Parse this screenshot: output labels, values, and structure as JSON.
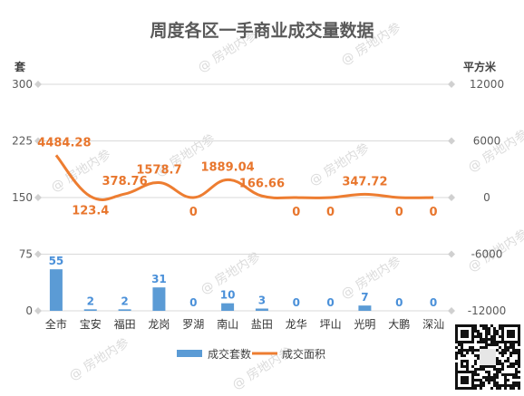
{
  "chart_data": {
    "type": "bar",
    "title": "周度各区一手商业成交量数据",
    "ylabel_left": "套",
    "ylabel_right": "平方米",
    "categories": [
      "全市",
      "宝安",
      "福田",
      "龙岗",
      "罗湖",
      "南山",
      "盐田",
      "龙华",
      "坪山",
      "光明",
      "大鹏",
      "深汕"
    ],
    "left_axis": {
      "ticks": [
        0,
        75,
        150,
        225,
        300
      ],
      "ylim": [
        0,
        300
      ]
    },
    "right_axis": {
      "ticks": [
        -12000,
        -6000,
        0,
        6000,
        12000
      ],
      "ylim": [
        -12000,
        12000
      ]
    },
    "series": [
      {
        "name": "成交套数",
        "type": "bar",
        "axis": "left",
        "color": "#5b9bd5",
        "values": [
          55,
          2,
          2,
          31,
          0,
          10,
          3,
          0,
          0,
          7,
          0,
          0
        ],
        "labels": [
          "55",
          "2",
          "2",
          "31",
          "0",
          "10",
          "3",
          "0",
          "0",
          "7",
          "0",
          "0"
        ]
      },
      {
        "name": "成交面积",
        "type": "line",
        "axis": "right",
        "color": "#ed7d31",
        "values": [
          4484.28,
          123.4,
          378.76,
          1578.7,
          0,
          1889.04,
          166.66,
          0,
          0,
          347.72,
          0,
          0
        ],
        "labels": [
          "4484.28",
          "123.4",
          "378.76",
          "1578.7",
          "0",
          "1889.04",
          "166.66",
          "0",
          "0",
          "347.72",
          "0",
          "0"
        ]
      }
    ],
    "grid": true,
    "legend_position": "bottom"
  },
  "watermark": "@ 房地内参"
}
